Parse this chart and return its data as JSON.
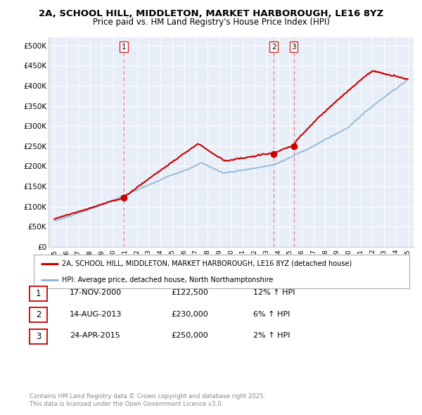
{
  "title_line1": "2A, SCHOOL HILL, MIDDLETON, MARKET HARBOROUGH, LE16 8YZ",
  "title_line2": "Price paid vs. HM Land Registry's House Price Index (HPI)",
  "ylim": [
    0,
    520000
  ],
  "yticks": [
    0,
    50000,
    100000,
    150000,
    200000,
    250000,
    300000,
    350000,
    400000,
    450000,
    500000
  ],
  "ytick_labels": [
    "£0",
    "£50K",
    "£100K",
    "£150K",
    "£200K",
    "£250K",
    "£300K",
    "£350K",
    "£400K",
    "£450K",
    "£500K"
  ],
  "xlim_start": 1994.5,
  "xlim_end": 2025.5,
  "xticks": [
    1995,
    1996,
    1997,
    1998,
    1999,
    2000,
    2001,
    2002,
    2003,
    2004,
    2005,
    2006,
    2007,
    2008,
    2009,
    2010,
    2011,
    2012,
    2013,
    2014,
    2015,
    2016,
    2017,
    2018,
    2019,
    2020,
    2021,
    2022,
    2023,
    2024,
    2025
  ],
  "bg_color": "#e8eef8",
  "outer_bg_color": "#ffffff",
  "red_line_color": "#cc0000",
  "blue_line_color": "#90b8d8",
  "vline_color": "#e88080",
  "marker_color": "#cc0000",
  "transactions": [
    {
      "date_x": 2000.88,
      "price": 122500,
      "label": "1"
    },
    {
      "date_x": 2013.62,
      "price": 230000,
      "label": "2"
    },
    {
      "date_x": 2015.32,
      "price": 250000,
      "label": "3"
    }
  ],
  "legend_red_label": "2A, SCHOOL HILL, MIDDLETON, MARKET HARBOROUGH, LE16 8YZ (detached house)",
  "legend_blue_label": "HPI: Average price, detached house, North Northamptonshire",
  "table_rows": [
    {
      "num": "1",
      "date": "17-NOV-2000",
      "price": "£122,500",
      "hpi": "12% ↑ HPI"
    },
    {
      "num": "2",
      "date": "14-AUG-2013",
      "price": "£230,000",
      "hpi": "6% ↑ HPI"
    },
    {
      "num": "3",
      "date": "24-APR-2015",
      "price": "£250,000",
      "hpi": "2% ↑ HPI"
    }
  ],
  "footer": "Contains HM Land Registry data © Crown copyright and database right 2025.\nThis data is licensed under the Open Government Licence v3.0."
}
